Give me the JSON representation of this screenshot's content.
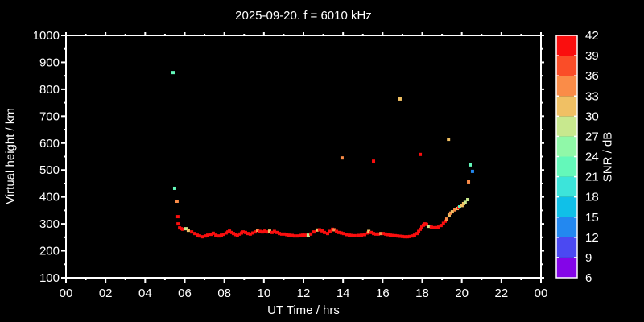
{
  "chart_data": {
    "type": "scatter",
    "title": "2025-09-20. f = 6010 kHz",
    "xlabel": "UT Time / hrs",
    "ylabel": "Virtual height / km",
    "xlim": [
      0,
      24
    ],
    "ylim": [
      100,
      1000
    ],
    "grid": false,
    "background_color": "#000000",
    "axis_color": "#ffffff",
    "point_size": 4,
    "x_ticks": {
      "values": [
        0,
        2,
        4,
        6,
        8,
        10,
        12,
        14,
        16,
        18,
        20,
        22,
        24
      ],
      "labels": [
        "00",
        "02",
        "04",
        "06",
        "08",
        "10",
        "12",
        "14",
        "16",
        "18",
        "20",
        "22",
        "00"
      ],
      "minor_step": 1
    },
    "y_ticks": {
      "values": [
        100,
        200,
        300,
        400,
        500,
        600,
        700,
        800,
        900,
        1000
      ],
      "labels": [
        "100",
        "200",
        "300",
        "400",
        "500",
        "600",
        "700",
        "800",
        "900",
        "1000"
      ],
      "minor_step": 50
    },
    "colorbar": {
      "label": "SNR / dB",
      "min": 6,
      "max": 42,
      "step": 3,
      "tick_labels": [
        "6",
        "9",
        "12",
        "15",
        "18",
        "21",
        "24",
        "27",
        "30",
        "33",
        "36",
        "39",
        "42"
      ],
      "colors_low_to_high": [
        "#8405e8",
        "#4b49f2",
        "#2388f0",
        "#10c0e8",
        "#3ce4da",
        "#64f8ba",
        "#90f8a8",
        "#c8e88e",
        "#f0c064",
        "#fa8c48",
        "#fa4d28",
        "#fa0e0e"
      ]
    },
    "points_format": [
      "ut_hour",
      "virtual_height_km",
      "snr_db"
    ],
    "points": [
      [
        5.41,
        862,
        22
      ],
      [
        5.49,
        432,
        22
      ],
      [
        5.61,
        384,
        34
      ],
      [
        13.95,
        545,
        34
      ],
      [
        15.54,
        533,
        41
      ],
      [
        17.9,
        558,
        41
      ],
      [
        16.88,
        764,
        31
      ],
      [
        19.33,
        614,
        31
      ],
      [
        20.42,
        519,
        22
      ],
      [
        20.54,
        495,
        13
      ],
      [
        20.34,
        456,
        34
      ],
      [
        20.3,
        390,
        28
      ],
      [
        5.65,
        327,
        41
      ],
      [
        5.66,
        300,
        41
      ],
      [
        5.74,
        285,
        41
      ],
      [
        5.82,
        282,
        41
      ],
      [
        5.9,
        280,
        41
      ],
      [
        6.06,
        282,
        28
      ],
      [
        6.18,
        276,
        31
      ],
      [
        6.35,
        270,
        41
      ],
      [
        6.51,
        264,
        41
      ],
      [
        6.63,
        258,
        41
      ],
      [
        6.75,
        255,
        41
      ],
      [
        6.91,
        252,
        41
      ],
      [
        7.04,
        255,
        41
      ],
      [
        7.16,
        258,
        41
      ],
      [
        7.32,
        261,
        41
      ],
      [
        7.44,
        265,
        41
      ],
      [
        7.57,
        258,
        41
      ],
      [
        7.73,
        255,
        41
      ],
      [
        7.85,
        258,
        41
      ],
      [
        7.97,
        261,
        41
      ],
      [
        8.09,
        266,
        41
      ],
      [
        8.18,
        270,
        41
      ],
      [
        8.26,
        273,
        41
      ],
      [
        8.38,
        268,
        41
      ],
      [
        8.46,
        264,
        41
      ],
      [
        8.58,
        260,
        41
      ],
      [
        8.66,
        257,
        41
      ],
      [
        8.79,
        262,
        41
      ],
      [
        8.87,
        266,
        41
      ],
      [
        8.95,
        270,
        41
      ],
      [
        9.07,
        268,
        41
      ],
      [
        9.19,
        264,
        41
      ],
      [
        9.31,
        262,
        41
      ],
      [
        9.44,
        266,
        41
      ],
      [
        9.56,
        270,
        41
      ],
      [
        9.68,
        276,
        34
      ],
      [
        9.8,
        272,
        41
      ],
      [
        9.92,
        270,
        41
      ],
      [
        10.05,
        273,
        41
      ],
      [
        10.17,
        270,
        41
      ],
      [
        10.29,
        273,
        31
      ],
      [
        10.41,
        268,
        41
      ],
      [
        10.53,
        272,
        41
      ],
      [
        10.66,
        268,
        41
      ],
      [
        10.78,
        264,
        41
      ],
      [
        10.9,
        262,
        41
      ],
      [
        11.02,
        262,
        41
      ],
      [
        11.15,
        260,
        41
      ],
      [
        11.27,
        258,
        41
      ],
      [
        11.43,
        257,
        41
      ],
      [
        11.55,
        255,
        41
      ],
      [
        11.71,
        255,
        41
      ],
      [
        11.84,
        257,
        41
      ],
      [
        11.96,
        258,
        41
      ],
      [
        12.08,
        258,
        41
      ],
      [
        12.24,
        258,
        28
      ],
      [
        12.37,
        262,
        41
      ],
      [
        12.53,
        270,
        41
      ],
      [
        12.69,
        277,
        31
      ],
      [
        12.81,
        278,
        41
      ],
      [
        12.94,
        274,
        41
      ],
      [
        13.06,
        268,
        41
      ],
      [
        13.22,
        264,
        41
      ],
      [
        13.34,
        272,
        41
      ],
      [
        13.47,
        280,
        41
      ],
      [
        13.55,
        278,
        34
      ],
      [
        13.67,
        272,
        41
      ],
      [
        13.79,
        268,
        41
      ],
      [
        13.91,
        266,
        41
      ],
      [
        14.03,
        264,
        41
      ],
      [
        14.16,
        260,
        41
      ],
      [
        14.32,
        258,
        41
      ],
      [
        14.44,
        257,
        41
      ],
      [
        14.6,
        256,
        41
      ],
      [
        14.77,
        257,
        41
      ],
      [
        14.93,
        258,
        41
      ],
      [
        15.09,
        260,
        41
      ],
      [
        15.25,
        266,
        41
      ],
      [
        15.3,
        272,
        31
      ],
      [
        15.42,
        268,
        41
      ],
      [
        15.54,
        264,
        41
      ],
      [
        15.66,
        262,
        41
      ],
      [
        15.78,
        262,
        41
      ],
      [
        15.91,
        264,
        34
      ],
      [
        16.03,
        264,
        41
      ],
      [
        16.15,
        262,
        41
      ],
      [
        16.27,
        260,
        41
      ],
      [
        16.39,
        258,
        41
      ],
      [
        16.52,
        257,
        41
      ],
      [
        16.64,
        256,
        41
      ],
      [
        16.76,
        255,
        41
      ],
      [
        16.88,
        254,
        41
      ],
      [
        17.0,
        253,
        41
      ],
      [
        17.13,
        252,
        41
      ],
      [
        17.25,
        252,
        41
      ],
      [
        17.37,
        253,
        41
      ],
      [
        17.49,
        255,
        41
      ],
      [
        17.61,
        258,
        41
      ],
      [
        17.74,
        264,
        41
      ],
      [
        17.82,
        272,
        41
      ],
      [
        17.9,
        280,
        41
      ],
      [
        17.98,
        288,
        41
      ],
      [
        18.06,
        295,
        41
      ],
      [
        18.14,
        300,
        41
      ],
      [
        18.22,
        298,
        41
      ],
      [
        18.34,
        291,
        28
      ],
      [
        18.46,
        288,
        41
      ],
      [
        18.58,
        286,
        41
      ],
      [
        18.71,
        286,
        41
      ],
      [
        18.83,
        288,
        41
      ],
      [
        18.95,
        294,
        41
      ],
      [
        19.07,
        302,
        41
      ],
      [
        19.16,
        310,
        41
      ],
      [
        19.24,
        318,
        34
      ],
      [
        19.36,
        333,
        31
      ],
      [
        19.44,
        340,
        34
      ],
      [
        19.52,
        345,
        31
      ],
      [
        19.65,
        352,
        34
      ],
      [
        19.77,
        357,
        31
      ],
      [
        19.85,
        360,
        41
      ],
      [
        19.89,
        363,
        22
      ],
      [
        20.01,
        368,
        31
      ],
      [
        20.09,
        375,
        31
      ],
      [
        20.17,
        380,
        28
      ]
    ]
  }
}
